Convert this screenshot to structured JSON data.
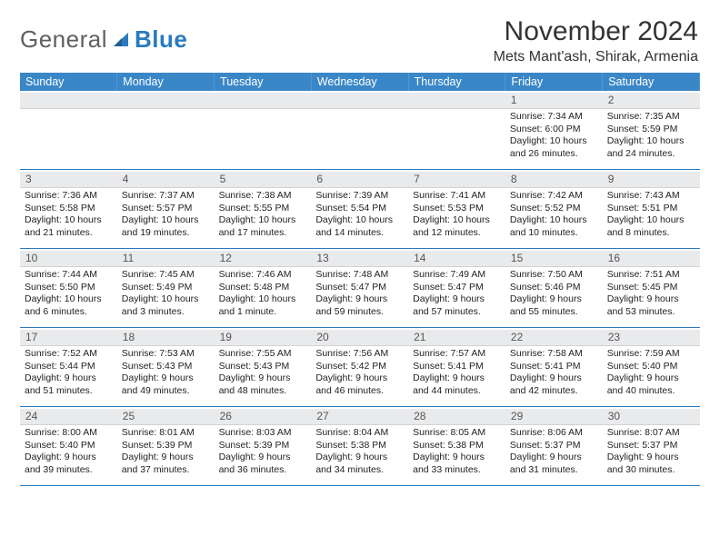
{
  "logo": {
    "text_a": "General",
    "text_b": "Blue"
  },
  "title": "November 2024",
  "location": "Mets Mant'ash, Shirak, Armenia",
  "weekday_headers": [
    "Sunday",
    "Monday",
    "Tuesday",
    "Wednesday",
    "Thursday",
    "Friday",
    "Saturday"
  ],
  "colors": {
    "header_bg": "#3a87c8",
    "header_text": "#ffffff",
    "daynum_bg": "#e9eaec",
    "rule": "#2a7bbf",
    "text": "#222222",
    "logo_gray": "#606060",
    "logo_blue": "#2a7bbf"
  },
  "weeks": [
    [
      {
        "n": "",
        "sr": "",
        "ss": "",
        "dl": ""
      },
      {
        "n": "",
        "sr": "",
        "ss": "",
        "dl": ""
      },
      {
        "n": "",
        "sr": "",
        "ss": "",
        "dl": ""
      },
      {
        "n": "",
        "sr": "",
        "ss": "",
        "dl": ""
      },
      {
        "n": "",
        "sr": "",
        "ss": "",
        "dl": ""
      },
      {
        "n": "1",
        "sr": "Sunrise: 7:34 AM",
        "ss": "Sunset: 6:00 PM",
        "dl": "Daylight: 10 hours and 26 minutes."
      },
      {
        "n": "2",
        "sr": "Sunrise: 7:35 AM",
        "ss": "Sunset: 5:59 PM",
        "dl": "Daylight: 10 hours and 24 minutes."
      }
    ],
    [
      {
        "n": "3",
        "sr": "Sunrise: 7:36 AM",
        "ss": "Sunset: 5:58 PM",
        "dl": "Daylight: 10 hours and 21 minutes."
      },
      {
        "n": "4",
        "sr": "Sunrise: 7:37 AM",
        "ss": "Sunset: 5:57 PM",
        "dl": "Daylight: 10 hours and 19 minutes."
      },
      {
        "n": "5",
        "sr": "Sunrise: 7:38 AM",
        "ss": "Sunset: 5:55 PM",
        "dl": "Daylight: 10 hours and 17 minutes."
      },
      {
        "n": "6",
        "sr": "Sunrise: 7:39 AM",
        "ss": "Sunset: 5:54 PM",
        "dl": "Daylight: 10 hours and 14 minutes."
      },
      {
        "n": "7",
        "sr": "Sunrise: 7:41 AM",
        "ss": "Sunset: 5:53 PM",
        "dl": "Daylight: 10 hours and 12 minutes."
      },
      {
        "n": "8",
        "sr": "Sunrise: 7:42 AM",
        "ss": "Sunset: 5:52 PM",
        "dl": "Daylight: 10 hours and 10 minutes."
      },
      {
        "n": "9",
        "sr": "Sunrise: 7:43 AM",
        "ss": "Sunset: 5:51 PM",
        "dl": "Daylight: 10 hours and 8 minutes."
      }
    ],
    [
      {
        "n": "10",
        "sr": "Sunrise: 7:44 AM",
        "ss": "Sunset: 5:50 PM",
        "dl": "Daylight: 10 hours and 6 minutes."
      },
      {
        "n": "11",
        "sr": "Sunrise: 7:45 AM",
        "ss": "Sunset: 5:49 PM",
        "dl": "Daylight: 10 hours and 3 minutes."
      },
      {
        "n": "12",
        "sr": "Sunrise: 7:46 AM",
        "ss": "Sunset: 5:48 PM",
        "dl": "Daylight: 10 hours and 1 minute."
      },
      {
        "n": "13",
        "sr": "Sunrise: 7:48 AM",
        "ss": "Sunset: 5:47 PM",
        "dl": "Daylight: 9 hours and 59 minutes."
      },
      {
        "n": "14",
        "sr": "Sunrise: 7:49 AM",
        "ss": "Sunset: 5:47 PM",
        "dl": "Daylight: 9 hours and 57 minutes."
      },
      {
        "n": "15",
        "sr": "Sunrise: 7:50 AM",
        "ss": "Sunset: 5:46 PM",
        "dl": "Daylight: 9 hours and 55 minutes."
      },
      {
        "n": "16",
        "sr": "Sunrise: 7:51 AM",
        "ss": "Sunset: 5:45 PM",
        "dl": "Daylight: 9 hours and 53 minutes."
      }
    ],
    [
      {
        "n": "17",
        "sr": "Sunrise: 7:52 AM",
        "ss": "Sunset: 5:44 PM",
        "dl": "Daylight: 9 hours and 51 minutes."
      },
      {
        "n": "18",
        "sr": "Sunrise: 7:53 AM",
        "ss": "Sunset: 5:43 PM",
        "dl": "Daylight: 9 hours and 49 minutes."
      },
      {
        "n": "19",
        "sr": "Sunrise: 7:55 AM",
        "ss": "Sunset: 5:43 PM",
        "dl": "Daylight: 9 hours and 48 minutes."
      },
      {
        "n": "20",
        "sr": "Sunrise: 7:56 AM",
        "ss": "Sunset: 5:42 PM",
        "dl": "Daylight: 9 hours and 46 minutes."
      },
      {
        "n": "21",
        "sr": "Sunrise: 7:57 AM",
        "ss": "Sunset: 5:41 PM",
        "dl": "Daylight: 9 hours and 44 minutes."
      },
      {
        "n": "22",
        "sr": "Sunrise: 7:58 AM",
        "ss": "Sunset: 5:41 PM",
        "dl": "Daylight: 9 hours and 42 minutes."
      },
      {
        "n": "23",
        "sr": "Sunrise: 7:59 AM",
        "ss": "Sunset: 5:40 PM",
        "dl": "Daylight: 9 hours and 40 minutes."
      }
    ],
    [
      {
        "n": "24",
        "sr": "Sunrise: 8:00 AM",
        "ss": "Sunset: 5:40 PM",
        "dl": "Daylight: 9 hours and 39 minutes."
      },
      {
        "n": "25",
        "sr": "Sunrise: 8:01 AM",
        "ss": "Sunset: 5:39 PM",
        "dl": "Daylight: 9 hours and 37 minutes."
      },
      {
        "n": "26",
        "sr": "Sunrise: 8:03 AM",
        "ss": "Sunset: 5:39 PM",
        "dl": "Daylight: 9 hours and 36 minutes."
      },
      {
        "n": "27",
        "sr": "Sunrise: 8:04 AM",
        "ss": "Sunset: 5:38 PM",
        "dl": "Daylight: 9 hours and 34 minutes."
      },
      {
        "n": "28",
        "sr": "Sunrise: 8:05 AM",
        "ss": "Sunset: 5:38 PM",
        "dl": "Daylight: 9 hours and 33 minutes."
      },
      {
        "n": "29",
        "sr": "Sunrise: 8:06 AM",
        "ss": "Sunset: 5:37 PM",
        "dl": "Daylight: 9 hours and 31 minutes."
      },
      {
        "n": "30",
        "sr": "Sunrise: 8:07 AM",
        "ss": "Sunset: 5:37 PM",
        "dl": "Daylight: 9 hours and 30 minutes."
      }
    ]
  ]
}
